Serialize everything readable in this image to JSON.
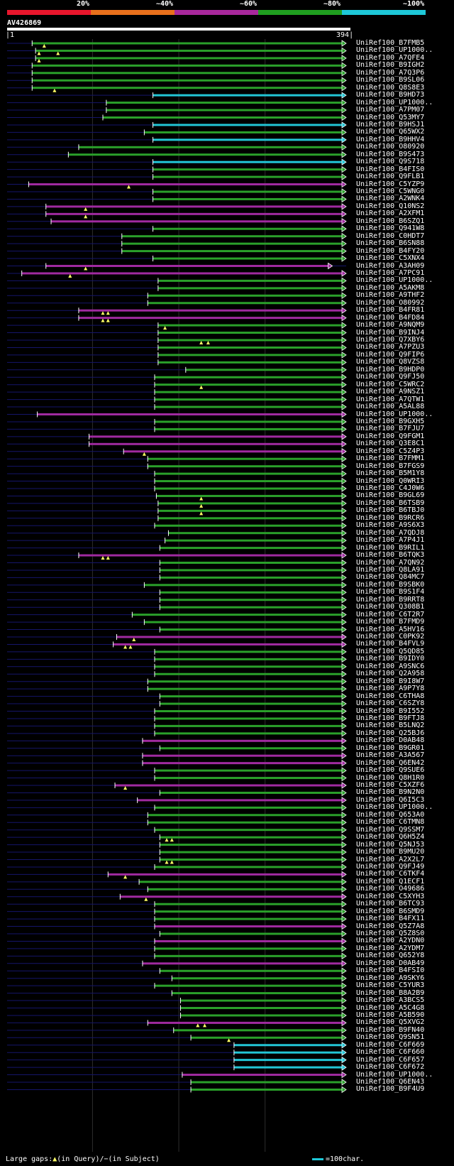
{
  "identity_legend": [
    {
      "label": "20%",
      "color": "#e8162c"
    },
    {
      "label": "~40%",
      "color": "#e8701c"
    },
    {
      "label": "~60%",
      "color": "#a8289c"
    },
    {
      "label": "~80%",
      "color": "#1f9e1f"
    },
    {
      "label": "~100%",
      "color": "#1ec8d8"
    }
  ],
  "query": {
    "name": "AV426869",
    "start": "1",
    "end": "394",
    "length": 394
  },
  "colors": {
    "green": "#2aa02a",
    "magenta": "#a02aa0",
    "cyan": "#22c6d6",
    "triangle": "#ffff66"
  },
  "hits": [
    {
      "label": "UniRef100_B7FMB5",
      "color": "green",
      "x1": 30,
      "x2": 394,
      "tri": [
        44
      ]
    },
    {
      "label": "UniRef100_UP1000..",
      "color": "green",
      "x1": 34,
      "x2": 394,
      "tri": [
        38,
        60
      ]
    },
    {
      "label": "UniRef100_A7QFE4",
      "color": "green",
      "x1": 34,
      "x2": 394,
      "tri": [
        38
      ]
    },
    {
      "label": "UniRef100_B9IGH2",
      "color": "green",
      "x1": 30,
      "x2": 394,
      "tri": []
    },
    {
      "label": "UniRef100_A7Q3P6",
      "color": "green",
      "x1": 30,
      "x2": 394,
      "tri": []
    },
    {
      "label": "UniRef100_B9SL06",
      "color": "green",
      "x1": 30,
      "x2": 394,
      "tri": []
    },
    {
      "label": "UniRef100_Q8S8E3",
      "color": "green",
      "x1": 30,
      "x2": 394,
      "tri": [
        56
      ]
    },
    {
      "label": "UniRef100_B9HD73",
      "color": "cyan",
      "x1": 170,
      "x2": 394,
      "tri": []
    },
    {
      "label": "UniRef100_UP1000..",
      "color": "green",
      "x1": 116,
      "x2": 394,
      "tri": []
    },
    {
      "label": "UniRef100_A7PM07",
      "color": "green",
      "x1": 116,
      "x2": 394,
      "tri": []
    },
    {
      "label": "UniRef100_Q53MY7",
      "color": "green",
      "x1": 112,
      "x2": 394,
      "tri": []
    },
    {
      "label": "UniRef100_B9HSJ1",
      "color": "cyan",
      "x1": 170,
      "x2": 394,
      "tri": []
    },
    {
      "label": "UniRef100_Q65WX2",
      "color": "green",
      "x1": 160,
      "x2": 394,
      "tri": []
    },
    {
      "label": "UniRef100_B9HHV4",
      "color": "cyan",
      "x1": 170,
      "x2": 394,
      "tri": []
    },
    {
      "label": "UniRef100_O80920",
      "color": "green",
      "x1": 84,
      "x2": 394,
      "tri": []
    },
    {
      "label": "UniRef100_B9S473",
      "color": "green",
      "x1": 72,
      "x2": 394,
      "tri": []
    },
    {
      "label": "UniRef100_Q9S718",
      "color": "cyan",
      "x1": 170,
      "x2": 394,
      "tri": []
    },
    {
      "label": "UniRef100_B4FIS0",
      "color": "green",
      "x1": 170,
      "x2": 394,
      "tri": []
    },
    {
      "label": "UniRef100_Q9FLB1",
      "color": "green",
      "x1": 170,
      "x2": 394,
      "tri": []
    },
    {
      "label": "UniRef100_C5YZP9",
      "color": "magenta",
      "x1": 26,
      "x2": 394,
      "tri": [
        142
      ]
    },
    {
      "label": "UniRef100_C5WNG0",
      "color": "green",
      "x1": 170,
      "x2": 394,
      "tri": []
    },
    {
      "label": "UniRef100_A2WNK4",
      "color": "green",
      "x1": 170,
      "x2": 394,
      "tri": []
    },
    {
      "label": "UniRef100_Q10NS2",
      "color": "magenta",
      "x1": 46,
      "x2": 394,
      "tri": [
        92
      ]
    },
    {
      "label": "UniRef100_A2XFM1",
      "color": "magenta",
      "x1": 46,
      "x2": 394,
      "tri": [
        92
      ]
    },
    {
      "label": "UniRef100_B6SZQ1",
      "color": "magenta",
      "x1": 52,
      "x2": 394,
      "tri": []
    },
    {
      "label": "UniRef100_Q941W8",
      "color": "green",
      "x1": 170,
      "x2": 394,
      "tri": []
    },
    {
      "label": "UniRef100_C0HDT7",
      "color": "green",
      "x1": 134,
      "x2": 394,
      "tri": []
    },
    {
      "label": "UniRef100_B6SN88",
      "color": "green",
      "x1": 134,
      "x2": 394,
      "tri": []
    },
    {
      "label": "UniRef100_B4FY20",
      "color": "green",
      "x1": 134,
      "x2": 394,
      "tri": []
    },
    {
      "label": "UniRef100_C5XNX4",
      "color": "green",
      "x1": 170,
      "x2": 394,
      "tri": []
    },
    {
      "label": "UniRef100_A3AH09",
      "color": "magenta",
      "x1": 46,
      "x2": 378,
      "tri": [
        92
      ]
    },
    {
      "label": "UniRef100_A7PC91",
      "color": "magenta",
      "x1": 18,
      "x2": 394,
      "tri": [
        74
      ]
    },
    {
      "label": "UniRef100_UP1000..",
      "color": "green",
      "x1": 176,
      "x2": 394,
      "tri": []
    },
    {
      "label": "UniRef100_A5AKM8",
      "color": "green",
      "x1": 176,
      "x2": 394,
      "tri": []
    },
    {
      "label": "UniRef100_A9THF2",
      "color": "green",
      "x1": 164,
      "x2": 394,
      "tri": []
    },
    {
      "label": "UniRef100_O80992",
      "color": "green",
      "x1": 164,
      "x2": 394,
      "tri": []
    },
    {
      "label": "UniRef100_B4FR81",
      "color": "magenta",
      "x1": 84,
      "x2": 394,
      "tri": [
        112,
        118
      ]
    },
    {
      "label": "UniRef100_B4FD84",
      "color": "magenta",
      "x1": 84,
      "x2": 394,
      "tri": [
        112,
        118
      ]
    },
    {
      "label": "UniRef100_A9NQM9",
      "color": "green",
      "x1": 176,
      "x2": 394,
      "tri": [
        184
      ]
    },
    {
      "label": "UniRef100_B9INJ4",
      "color": "green",
      "x1": 176,
      "x2": 394,
      "tri": []
    },
    {
      "label": "UniRef100_Q7XBY6",
      "color": "green",
      "x1": 176,
      "x2": 394,
      "tri": [
        226,
        234
      ]
    },
    {
      "label": "UniRef100_A7PZU3",
      "color": "green",
      "x1": 176,
      "x2": 394,
      "tri": []
    },
    {
      "label": "UniRef100_Q9FIP6",
      "color": "green",
      "x1": 176,
      "x2": 394,
      "tri": []
    },
    {
      "label": "UniRef100_Q8VZS8",
      "color": "green",
      "x1": 176,
      "x2": 394,
      "tri": []
    },
    {
      "label": "UniRef100_B9HDP0",
      "color": "green",
      "x1": 208,
      "x2": 394,
      "tri": []
    },
    {
      "label": "UniRef100_Q9FJ50",
      "color": "green",
      "x1": 172,
      "x2": 394,
      "tri": []
    },
    {
      "label": "UniRef100_C5WRC2",
      "color": "green",
      "x1": 172,
      "x2": 394,
      "tri": [
        226
      ]
    },
    {
      "label": "UniRef100_A9NSZ1",
      "color": "green",
      "x1": 172,
      "x2": 394,
      "tri": []
    },
    {
      "label": "UniRef100_A7QTW1",
      "color": "green",
      "x1": 172,
      "x2": 394,
      "tri": []
    },
    {
      "label": "UniRef100_A5AL88",
      "color": "green",
      "x1": 172,
      "x2": 394,
      "tri": []
    },
    {
      "label": "UniRef100_UP1000..",
      "color": "magenta",
      "x1": 36,
      "x2": 394,
      "tri": []
    },
    {
      "label": "UniRef100_B9GXH5",
      "color": "green",
      "x1": 172,
      "x2": 394,
      "tri": []
    },
    {
      "label": "UniRef100_B7FJU7",
      "color": "green",
      "x1": 172,
      "x2": 394,
      "tri": []
    },
    {
      "label": "UniRef100_Q9FGM1",
      "color": "magenta",
      "x1": 96,
      "x2": 394,
      "tri": []
    },
    {
      "label": "UniRef100_Q3E8C1",
      "color": "magenta",
      "x1": 96,
      "x2": 394,
      "tri": []
    },
    {
      "label": "UniRef100_C5Z4P3",
      "color": "magenta",
      "x1": 136,
      "x2": 394,
      "tri": [
        160
      ]
    },
    {
      "label": "UniRef100_B7FMM1",
      "color": "green",
      "x1": 164,
      "x2": 394,
      "tri": []
    },
    {
      "label": "UniRef100_B7FGS9",
      "color": "green",
      "x1": 164,
      "x2": 394,
      "tri": []
    },
    {
      "label": "UniRef100_B5M1Y8",
      "color": "green",
      "x1": 172,
      "x2": 394,
      "tri": []
    },
    {
      "label": "UniRef100_Q0WRI3",
      "color": "green",
      "x1": 172,
      "x2": 394,
      "tri": []
    },
    {
      "label": "UniRef100_C4J0W6",
      "color": "green",
      "x1": 172,
      "x2": 394,
      "tri": []
    },
    {
      "label": "UniRef100_B9GL69",
      "color": "green",
      "x1": 174,
      "x2": 394,
      "tri": [
        226
      ]
    },
    {
      "label": "UniRef100_B6TSB9",
      "color": "green",
      "x1": 176,
      "x2": 394,
      "tri": [
        226
      ]
    },
    {
      "label": "UniRef100_B6TBJ0",
      "color": "green",
      "x1": 176,
      "x2": 394,
      "tri": [
        226
      ]
    },
    {
      "label": "UniRef100_B9RCR6",
      "color": "green",
      "x1": 176,
      "x2": 394,
      "tri": []
    },
    {
      "label": "UniRef100_A9S6X3",
      "color": "green",
      "x1": 172,
      "x2": 394,
      "tri": []
    },
    {
      "label": "UniRef100_A7QDJ8",
      "color": "green",
      "x1": 188,
      "x2": 394,
      "tri": []
    },
    {
      "label": "UniRef100_A7P4J1",
      "color": "green",
      "x1": 184,
      "x2": 394,
      "tri": []
    },
    {
      "label": "UniRef100_B9RIL1",
      "color": "green",
      "x1": 178,
      "x2": 394,
      "tri": []
    },
    {
      "label": "UniRef100_B6TQK3",
      "color": "magenta",
      "x1": 84,
      "x2": 394,
      "tri": [
        112,
        118
      ]
    },
    {
      "label": "UniRef100_A7QN92",
      "color": "green",
      "x1": 178,
      "x2": 394,
      "tri": []
    },
    {
      "label": "UniRef100_Q8LA91",
      "color": "green",
      "x1": 178,
      "x2": 394,
      "tri": []
    },
    {
      "label": "UniRef100_Q84MC7",
      "color": "green",
      "x1": 178,
      "x2": 394,
      "tri": []
    },
    {
      "label": "UniRef100_B9SBK0",
      "color": "green",
      "x1": 160,
      "x2": 394,
      "tri": []
    },
    {
      "label": "UniRef100_B9S1F4",
      "color": "green",
      "x1": 178,
      "x2": 394,
      "tri": []
    },
    {
      "label": "UniRef100_B9RRT8",
      "color": "green",
      "x1": 178,
      "x2": 394,
      "tri": []
    },
    {
      "label": "UniRef100_Q308B1",
      "color": "green",
      "x1": 178,
      "x2": 394,
      "tri": []
    },
    {
      "label": "UniRef100_C6T2R7",
      "color": "green",
      "x1": 146,
      "x2": 394,
      "tri": []
    },
    {
      "label": "UniRef100_B7FMD9",
      "color": "green",
      "x1": 160,
      "x2": 394,
      "tri": []
    },
    {
      "label": "UniRef100_A5HV16",
      "color": "green",
      "x1": 178,
      "x2": 394,
      "tri": []
    },
    {
      "label": "UniRef100_C0PK92",
      "color": "magenta",
      "x1": 128,
      "x2": 394,
      "tri": [
        148
      ]
    },
    {
      "label": "UniRef100_B4FVL9",
      "color": "magenta",
      "x1": 124,
      "x2": 394,
      "tri": [
        138,
        144
      ]
    },
    {
      "label": "UniRef100_Q5QD85",
      "color": "green",
      "x1": 172,
      "x2": 394,
      "tri": []
    },
    {
      "label": "UniRef100_B9IDY0",
      "color": "green",
      "x1": 172,
      "x2": 394,
      "tri": []
    },
    {
      "label": "UniRef100_A9SNC6",
      "color": "green",
      "x1": 172,
      "x2": 394,
      "tri": []
    },
    {
      "label": "UniRef100_Q2A958",
      "color": "green",
      "x1": 172,
      "x2": 394,
      "tri": []
    },
    {
      "label": "UniRef100_B9I8W7",
      "color": "green",
      "x1": 164,
      "x2": 394,
      "tri": []
    },
    {
      "label": "UniRef100_A9P7Y8",
      "color": "green",
      "x1": 164,
      "x2": 394,
      "tri": []
    },
    {
      "label": "UniRef100_C6THA8",
      "color": "green",
      "x1": 178,
      "x2": 394,
      "tri": []
    },
    {
      "label": "UniRef100_C6SZY8",
      "color": "green",
      "x1": 178,
      "x2": 394,
      "tri": []
    },
    {
      "label": "UniRef100_B9I552",
      "color": "green",
      "x1": 172,
      "x2": 394,
      "tri": []
    },
    {
      "label": "UniRef100_B9FTJ8",
      "color": "green",
      "x1": 172,
      "x2": 394,
      "tri": []
    },
    {
      "label": "UniRef100_B5LNQ2",
      "color": "green",
      "x1": 172,
      "x2": 394,
      "tri": []
    },
    {
      "label": "UniRef100_Q25BJ6",
      "color": "green",
      "x1": 172,
      "x2": 394,
      "tri": []
    },
    {
      "label": "UniRef100_D0AB48",
      "color": "magenta",
      "x1": 158,
      "x2": 394,
      "tri": []
    },
    {
      "label": "UniRef100_B9GR01",
      "color": "green",
      "x1": 178,
      "x2": 394,
      "tri": []
    },
    {
      "label": "UniRef100_A3A567",
      "color": "magenta",
      "x1": 158,
      "x2": 394,
      "tri": []
    },
    {
      "label": "UniRef100_Q6EN42",
      "color": "magenta",
      "x1": 158,
      "x2": 394,
      "tri": []
    },
    {
      "label": "UniRef100_Q9SUE6",
      "color": "green",
      "x1": 172,
      "x2": 394,
      "tri": []
    },
    {
      "label": "UniRef100_Q8H1R0",
      "color": "green",
      "x1": 172,
      "x2": 394,
      "tri": []
    },
    {
      "label": "UniRef100_C5XZF6",
      "color": "magenta",
      "x1": 126,
      "x2": 394,
      "tri": [
        138
      ]
    },
    {
      "label": "UniRef100_B9N2N0",
      "color": "green",
      "x1": 178,
      "x2": 394,
      "tri": []
    },
    {
      "label": "UniRef100_Q6I5C3",
      "color": "magenta",
      "x1": 152,
      "x2": 394,
      "tri": []
    },
    {
      "label": "UniRef100_UP1000..",
      "color": "green",
      "x1": 172,
      "x2": 394,
      "tri": []
    },
    {
      "label": "UniRef100_Q653A0",
      "color": "green",
      "x1": 164,
      "x2": 394,
      "tri": []
    },
    {
      "label": "UniRef100_C6TMN8",
      "color": "green",
      "x1": 164,
      "x2": 394,
      "tri": []
    },
    {
      "label": "UniRef100_Q9SSM7",
      "color": "green",
      "x1": 172,
      "x2": 394,
      "tri": []
    },
    {
      "label": "UniRef100_Q6H5Z4",
      "color": "green",
      "x1": 178,
      "x2": 394,
      "tri": [
        186,
        192
      ]
    },
    {
      "label": "UniRef100_Q5NJ53",
      "color": "green",
      "x1": 178,
      "x2": 394,
      "tri": []
    },
    {
      "label": "UniRef100_B9MU20",
      "color": "green",
      "x1": 178,
      "x2": 394,
      "tri": []
    },
    {
      "label": "UniRef100_A2X2L7",
      "color": "green",
      "x1": 178,
      "x2": 394,
      "tri": [
        186,
        192
      ]
    },
    {
      "label": "UniRef100_Q9FJ49",
      "color": "green",
      "x1": 172,
      "x2": 394,
      "tri": []
    },
    {
      "label": "UniRef100_C6TKF4",
      "color": "magenta",
      "x1": 118,
      "x2": 394,
      "tri": [
        138
      ]
    },
    {
      "label": "UniRef100_Q1ECF1",
      "color": "green",
      "x1": 154,
      "x2": 394,
      "tri": []
    },
    {
      "label": "UniRef100_O49686",
      "color": "green",
      "x1": 164,
      "x2": 394,
      "tri": []
    },
    {
      "label": "UniRef100_C5XYH3",
      "color": "magenta",
      "x1": 132,
      "x2": 394,
      "tri": [
        162
      ]
    },
    {
      "label": "UniRef100_B6TC93",
      "color": "green",
      "x1": 172,
      "x2": 394,
      "tri": []
    },
    {
      "label": "UniRef100_B6SMD9",
      "color": "green",
      "x1": 172,
      "x2": 394,
      "tri": []
    },
    {
      "label": "UniRef100_B4FX11",
      "color": "green",
      "x1": 172,
      "x2": 394,
      "tri": []
    },
    {
      "label": "UniRef100_Q5Z7A8",
      "color": "magenta",
      "x1": 172,
      "x2": 394,
      "tri": []
    },
    {
      "label": "UniRef100_Q5Z8S0",
      "color": "green",
      "x1": 178,
      "x2": 394,
      "tri": []
    },
    {
      "label": "UniRef100_A2YDN0",
      "color": "magenta",
      "x1": 172,
      "x2": 394,
      "tri": []
    },
    {
      "label": "UniRef100_A2YDM7",
      "color": "green",
      "x1": 172,
      "x2": 394,
      "tri": []
    },
    {
      "label": "UniRef100_Q652Y8",
      "color": "green",
      "x1": 172,
      "x2": 394,
      "tri": []
    },
    {
      "label": "UniRef100_D0AB49",
      "color": "magenta",
      "x1": 158,
      "x2": 394,
      "tri": []
    },
    {
      "label": "UniRef100_B4FSI0",
      "color": "green",
      "x1": 178,
      "x2": 394,
      "tri": []
    },
    {
      "label": "UniRef100_A9SKY6",
      "color": "green",
      "x1": 192,
      "x2": 394,
      "tri": []
    },
    {
      "label": "UniRef100_C5YUR3",
      "color": "green",
      "x1": 172,
      "x2": 394,
      "tri": []
    },
    {
      "label": "UniRef100_B8A2B9",
      "color": "green",
      "x1": 192,
      "x2": 394,
      "tri": []
    },
    {
      "label": "UniRef100_A3BCS5",
      "color": "green",
      "x1": 202,
      "x2": 394,
      "tri": []
    },
    {
      "label": "UniRef100_A5C4G8",
      "color": "green",
      "x1": 202,
      "x2": 394,
      "tri": []
    },
    {
      "label": "UniRef100_A5B590",
      "color": "green",
      "x1": 202,
      "x2": 394,
      "tri": []
    },
    {
      "label": "UniRef100_Q5XVG2",
      "color": "magenta",
      "x1": 164,
      "x2": 394,
      "tri": [
        222,
        230
      ]
    },
    {
      "label": "UniRef100_B9FN40",
      "color": "green",
      "x1": 194,
      "x2": 394,
      "tri": []
    },
    {
      "label": "UniRef100_Q9SN51",
      "color": "green",
      "x1": 214,
      "x2": 394,
      "tri": [
        258
      ]
    },
    {
      "label": "UniRef100_C6F669",
      "color": "cyan",
      "x1": 264,
      "x2": 394,
      "tri": []
    },
    {
      "label": "UniRef100_C6F660",
      "color": "cyan",
      "x1": 264,
      "x2": 394,
      "tri": []
    },
    {
      "label": "UniRef100_C6F657",
      "color": "cyan",
      "x1": 264,
      "x2": 394,
      "tri": []
    },
    {
      "label": "UniRef100_C6F672",
      "color": "cyan",
      "x1": 264,
      "x2": 394,
      "tri": []
    },
    {
      "label": "UniRef100_UP1000..",
      "color": "magenta",
      "x1": 204,
      "x2": 394,
      "tri": []
    },
    {
      "label": "UniRef100_Q6EN43",
      "color": "green",
      "x1": 214,
      "x2": 394,
      "tri": []
    },
    {
      "label": "UniRef100_B9F4U9",
      "color": "green",
      "x1": 214,
      "x2": 394,
      "tri": []
    }
  ],
  "footer": {
    "gaps_prefix": "Large gaps:",
    "gaps_query_symbol": "▲",
    "gaps_query": "(in Query)/",
    "gaps_subject_symbol": "−",
    "gaps_subject": "(in Subject)",
    "scale_label": "=100char."
  }
}
